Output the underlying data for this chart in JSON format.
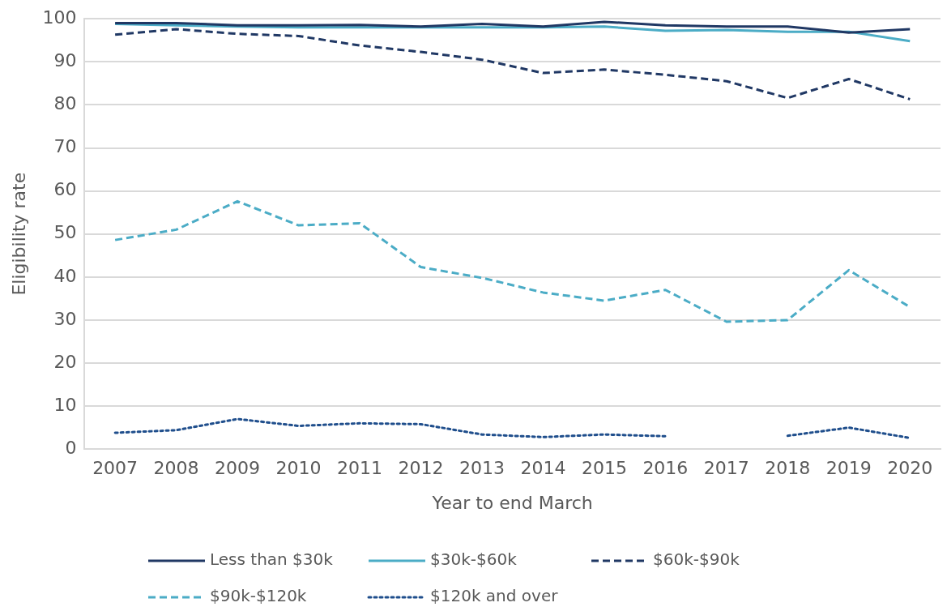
{
  "chart_data": {
    "type": "line",
    "xlabel": "Year to end March",
    "ylabel": "Eligibility rate",
    "categories": [
      "2007",
      "2008",
      "2009",
      "2010",
      "2011",
      "2012",
      "2013",
      "2014",
      "2015",
      "2016",
      "2017",
      "2018",
      "2019",
      "2020"
    ],
    "series": [
      {
        "name": "Less than $30k",
        "color": "#203864",
        "line_style": "solid",
        "values": [
          99,
          99,
          98.5,
          98.5,
          98.6,
          98.2,
          98.8,
          98.2,
          99.3,
          98.5,
          98.2,
          98.2,
          96.8,
          97.6
        ]
      },
      {
        "name": "$30k-$60k",
        "color": "#4bacc6",
        "line_style": "solid",
        "values": [
          98.8,
          98.5,
          98.2,
          98,
          98,
          98,
          98,
          98,
          98.2,
          97.2,
          97.4,
          97,
          97,
          94.8
        ]
      },
      {
        "name": "$60k-$90k",
        "color": "#203864",
        "line_style": "dashed",
        "values": [
          96.3,
          97.6,
          96.5,
          96,
          93.8,
          92.3,
          90.5,
          87.4,
          88.2,
          87,
          85.5,
          81.6,
          86,
          81.3
        ]
      },
      {
        "name": "$90k-$120k",
        "color": "#4bacc6",
        "line_style": "dashed",
        "values": [
          48.6,
          51,
          57.6,
          52,
          52.5,
          42.3,
          39.8,
          36.4,
          34.5,
          37,
          29.6,
          30,
          41.6,
          33
        ]
      },
      {
        "name": "$120k and over",
        "color": "#1f4e8c",
        "line_style": "dotted",
        "values": [
          3.8,
          4.4,
          7,
          5.4,
          6,
          5.8,
          3.4,
          2.8,
          3.4,
          3,
          null,
          3.1,
          5,
          2.6
        ]
      }
    ],
    "ylim": [
      0,
      100
    ],
    "yticks": [
      0,
      10,
      20,
      30,
      40,
      50,
      60,
      70,
      80,
      90,
      100
    ],
    "grid": "y",
    "legend": "bottom",
    "marker": "none"
  }
}
